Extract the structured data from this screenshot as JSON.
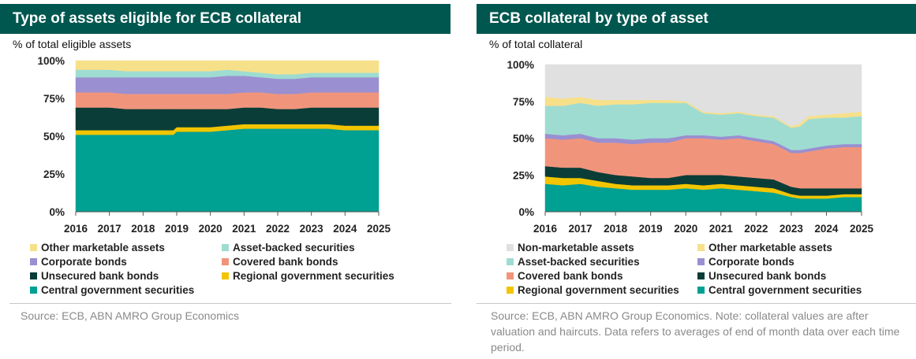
{
  "left": {
    "title": "Type of assets eligible for ECB collateral",
    "subtitle": "% of total eligible assets",
    "source": "Source: ECB, ABN AMRO Group Economics"
  },
  "right": {
    "title": "ECB collateral by type of asset",
    "subtitle": "% of total collateral",
    "source": "Source: ECB, ABN AMRO Group Economics. Note: collateral values are after valuation and haircuts. Data refers to averages of end of month data over each time period."
  },
  "chart_data": [
    {
      "type": "area",
      "stacked": true,
      "title": "Type of assets eligible for ECB collateral",
      "ylabel": "% of total eligible assets",
      "x": [
        2016,
        2016.5,
        2017,
        2017.5,
        2018,
        2018.5,
        2018.9,
        2019,
        2019.5,
        2020,
        2020.5,
        2021,
        2021.5,
        2022,
        2022.5,
        2023,
        2023.5,
        2024,
        2024.5,
        2025
      ],
      "x_ticks": [
        "2016",
        "2017",
        "2018",
        "2019",
        "2020",
        "2021",
        "2022",
        "2023",
        "2024",
        "2025"
      ],
      "y_ticks": [
        "0%",
        "25%",
        "50%",
        "75%",
        "100%"
      ],
      "ylim": [
        0,
        100
      ],
      "series": [
        {
          "name": "Central government securities",
          "color": "#00a092",
          "values": [
            51,
            51,
            51,
            51,
            51,
            51,
            51,
            53,
            53,
            53,
            54,
            55,
            55,
            55,
            55,
            55,
            55,
            54,
            54,
            54
          ]
        },
        {
          "name": "Regional government securities",
          "color": "#f2c500",
          "values": [
            3,
            3,
            3,
            3,
            3,
            3,
            3,
            3,
            3,
            3,
            3,
            3,
            3,
            3,
            3,
            3,
            3,
            3,
            3,
            3
          ]
        },
        {
          "name": "Unsecured bank bonds",
          "color": "#0a3d37",
          "values": [
            15,
            15,
            15,
            14,
            14,
            14,
            14,
            12,
            12,
            12,
            11,
            11,
            11,
            10,
            10,
            11,
            11,
            12,
            12,
            12
          ]
        },
        {
          "name": "Covered bank bonds",
          "color": "#f0957c",
          "values": [
            10,
            10,
            10,
            10,
            10,
            10,
            10,
            10,
            10,
            10,
            10,
            10,
            10,
            10,
            10,
            10,
            10,
            10,
            10,
            10
          ]
        },
        {
          "name": "Corporate bonds",
          "color": "#9a8fd1",
          "values": [
            10,
            10,
            10,
            11,
            11,
            11,
            11,
            11,
            11,
            11,
            12,
            11,
            10,
            10,
            10,
            10,
            10,
            10,
            10,
            10
          ]
        },
        {
          "name": "Asset-backed securities",
          "color": "#9edcd2",
          "values": [
            5,
            5,
            5,
            4,
            4,
            4,
            4,
            4,
            4,
            4,
            4,
            3,
            3,
            3,
            3,
            3,
            3,
            3,
            3,
            3
          ]
        },
        {
          "name": "Other marketable assets",
          "color": "#f7e08a",
          "values": [
            6,
            6,
            6,
            7,
            7,
            7,
            7,
            7,
            7,
            7,
            6,
            7,
            8,
            9,
            9,
            8,
            8,
            8,
            8,
            8
          ]
        }
      ],
      "legend": {
        "placement": "bottom",
        "columns": 2,
        "order": [
          "Other marketable assets",
          "Asset-backed securities",
          "Corporate bonds",
          "Covered bank bonds",
          "Unsecured bank bonds",
          "Regional government securities",
          "Central government securities"
        ]
      }
    },
    {
      "type": "area",
      "stacked": true,
      "title": "ECB collateral by type of asset",
      "ylabel": "% of total collateral",
      "x": [
        2016,
        2016.5,
        2017,
        2017.5,
        2018,
        2018.5,
        2019,
        2019.5,
        2020,
        2020.5,
        2021,
        2021.5,
        2022,
        2022.5,
        2023,
        2023.25,
        2023.5,
        2024,
        2024.5,
        2025
      ],
      "x_ticks": [
        "2016",
        "2017",
        "2018",
        "2019",
        "2020",
        "2021",
        "2022",
        "2023",
        "2024",
        "2025"
      ],
      "y_ticks": [
        "0%",
        "25%",
        "50%",
        "75%",
        "100%"
      ],
      "ylim": [
        0,
        100
      ],
      "series": [
        {
          "name": "Central government securities",
          "color": "#00a092",
          "values": [
            19,
            18,
            19,
            17,
            16,
            15,
            15,
            15,
            16,
            15,
            16,
            15,
            14,
            13,
            10,
            9,
            9,
            9,
            10,
            10
          ]
        },
        {
          "name": "Regional government securities",
          "color": "#f2c500",
          "values": [
            5,
            5,
            4,
            4,
            3,
            3,
            3,
            3,
            3,
            3,
            3,
            3,
            3,
            3,
            2,
            2,
            2,
            2,
            2,
            2
          ]
        },
        {
          "name": "Unsecured bank bonds",
          "color": "#0a3d37",
          "values": [
            7,
            7,
            7,
            6,
            6,
            6,
            5,
            5,
            6,
            7,
            6,
            6,
            6,
            6,
            5,
            5,
            5,
            5,
            4,
            4
          ]
        },
        {
          "name": "Covered bank bonds",
          "color": "#f0957c",
          "values": [
            19,
            19,
            20,
            20,
            22,
            22,
            24,
            24,
            25,
            25,
            24,
            26,
            25,
            24,
            23,
            24,
            25,
            27,
            28,
            28
          ]
        },
        {
          "name": "Corporate bonds",
          "color": "#9a8fd1",
          "values": [
            3,
            3,
            3,
            3,
            3,
            3,
            3,
            3,
            2,
            2,
            2,
            2,
            2,
            2,
            2,
            2,
            2,
            2,
            2,
            2
          ]
        },
        {
          "name": "Asset-backed securities",
          "color": "#9edcd2",
          "values": [
            19,
            20,
            21,
            22,
            23,
            24,
            24,
            24,
            22,
            15,
            15,
            15,
            15,
            16,
            15,
            16,
            20,
            19,
            18,
            19
          ]
        },
        {
          "name": "Other marketable assets",
          "color": "#f7e08a",
          "values": [
            6,
            5,
            4,
            4,
            3,
            3,
            2,
            2,
            1,
            1,
            1,
            1,
            1,
            1,
            1,
            2,
            2,
            2,
            3,
            3
          ]
        },
        {
          "name": "Non-marketable assets",
          "color": "#e0e0e0",
          "values": [
            22,
            23,
            22,
            24,
            24,
            24,
            24,
            24,
            25,
            32,
            33,
            32,
            34,
            35,
            42,
            40,
            35,
            34,
            33,
            32
          ]
        }
      ],
      "legend": {
        "placement": "bottom",
        "columns": 2,
        "order": [
          "Non-marketable assets",
          "Other marketable assets",
          "Asset-backed securities",
          "Corporate bonds",
          "Covered bank bonds",
          "Unsecured bank bonds",
          "Regional government securities",
          "Central government securities"
        ]
      }
    }
  ]
}
